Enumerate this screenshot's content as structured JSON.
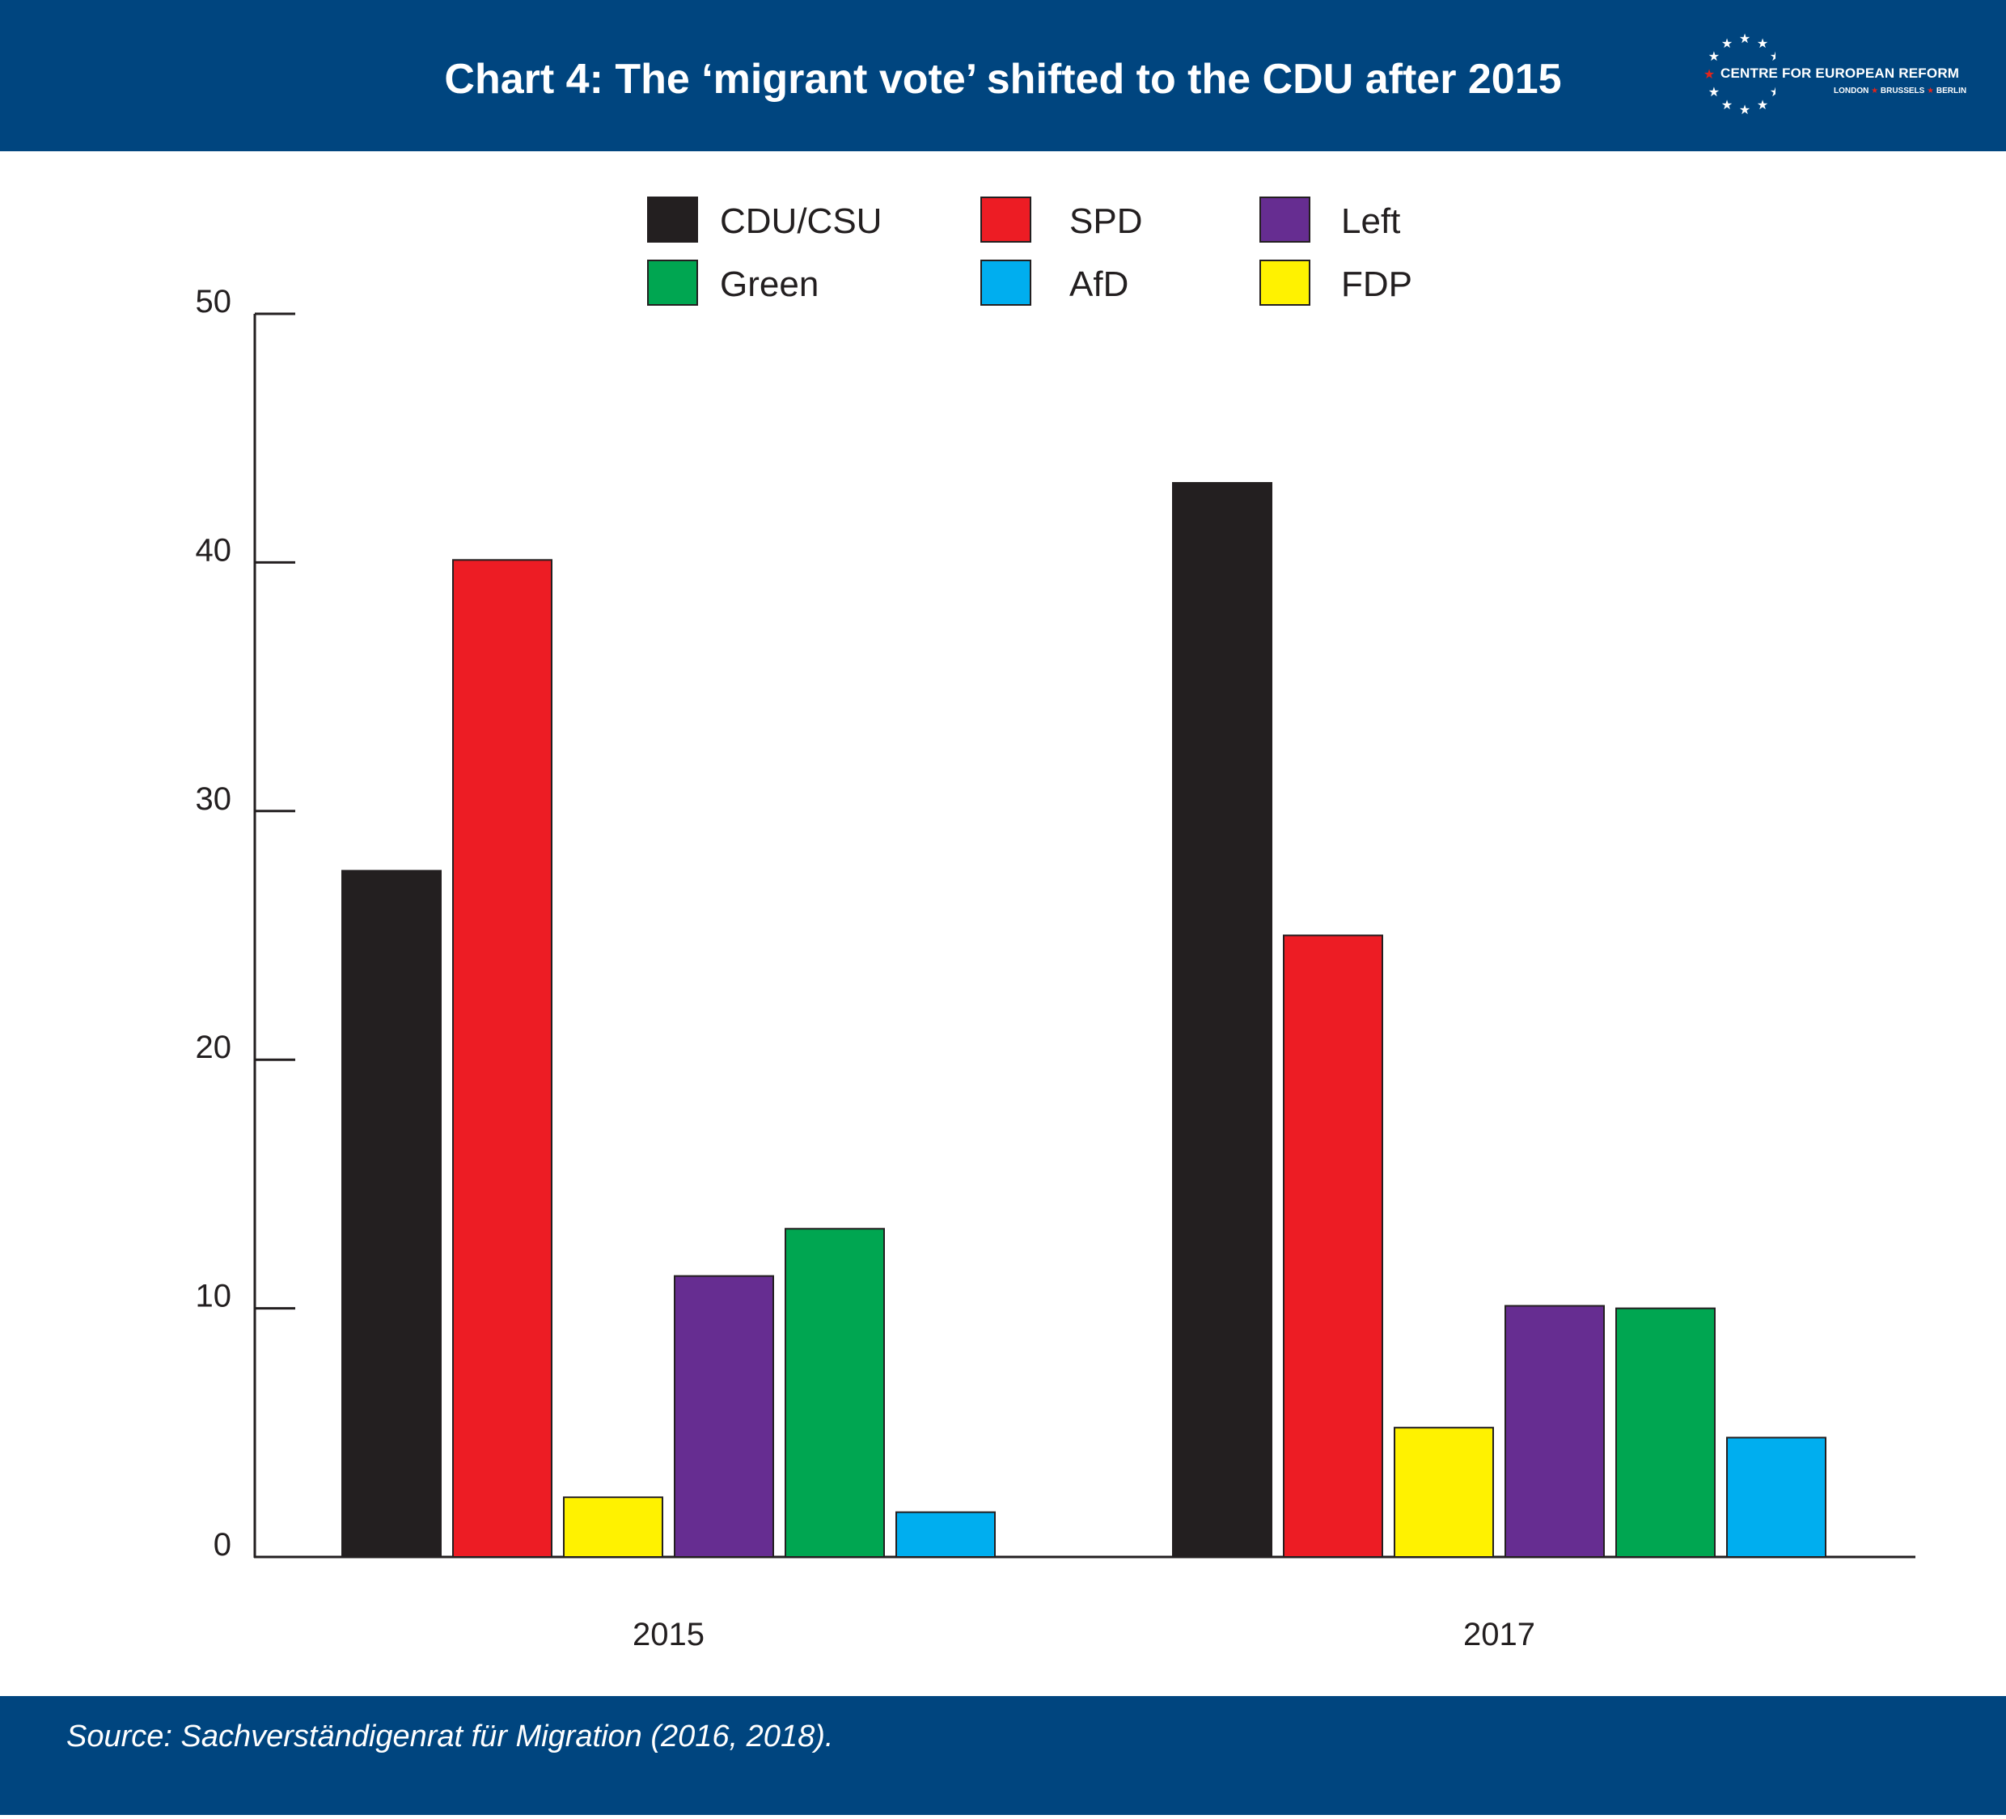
{
  "header": {
    "title": "Chart 4: The ‘migrant vote’ shifted to the CDU after 2015",
    "logo": {
      "name": "CENTRE FOR EUROPEAN REFORM",
      "cities": [
        "LONDON",
        "BRUSSELS",
        "BERLIN"
      ],
      "icon": "eu-stars-icon"
    },
    "colors": {
      "brand": "#00457f",
      "star_accent": "#e1251b"
    }
  },
  "chart_data": {
    "type": "bar",
    "title": "Chart 4: The ‘migrant vote’ shifted to the CDU after 2015",
    "xlabel": "",
    "ylabel": "",
    "categories": [
      "2015",
      "2017"
    ],
    "ylim": [
      0,
      50
    ],
    "yticks": [
      0,
      10,
      20,
      30,
      40,
      50
    ],
    "grid": false,
    "legend_position": "top",
    "legend_order": [
      "CDU/CSU",
      "SPD",
      "Left",
      "Green",
      "AfD",
      "FDP"
    ],
    "bar_order": [
      "CDU/CSU",
      "SPD",
      "FDP",
      "Left",
      "Green",
      "AfD"
    ],
    "series": [
      {
        "name": "CDU/CSU",
        "color": "#231f20",
        "values": [
          27.6,
          43.2
        ]
      },
      {
        "name": "SPD",
        "color": "#ed1c24",
        "values": [
          40.1,
          25.0
        ]
      },
      {
        "name": "FDP",
        "color": "#fff200",
        "values": [
          2.4,
          5.2
        ]
      },
      {
        "name": "Left",
        "color": "#662d91",
        "values": [
          11.3,
          10.1
        ]
      },
      {
        "name": "Green",
        "color": "#00a651",
        "values": [
          13.2,
          10.0
        ]
      },
      {
        "name": "AfD",
        "color": "#00aeef",
        "values": [
          1.8,
          4.8
        ]
      }
    ]
  },
  "footer": {
    "source": "Source: Sachverständigenrat für Migration (2016, 2018)."
  }
}
